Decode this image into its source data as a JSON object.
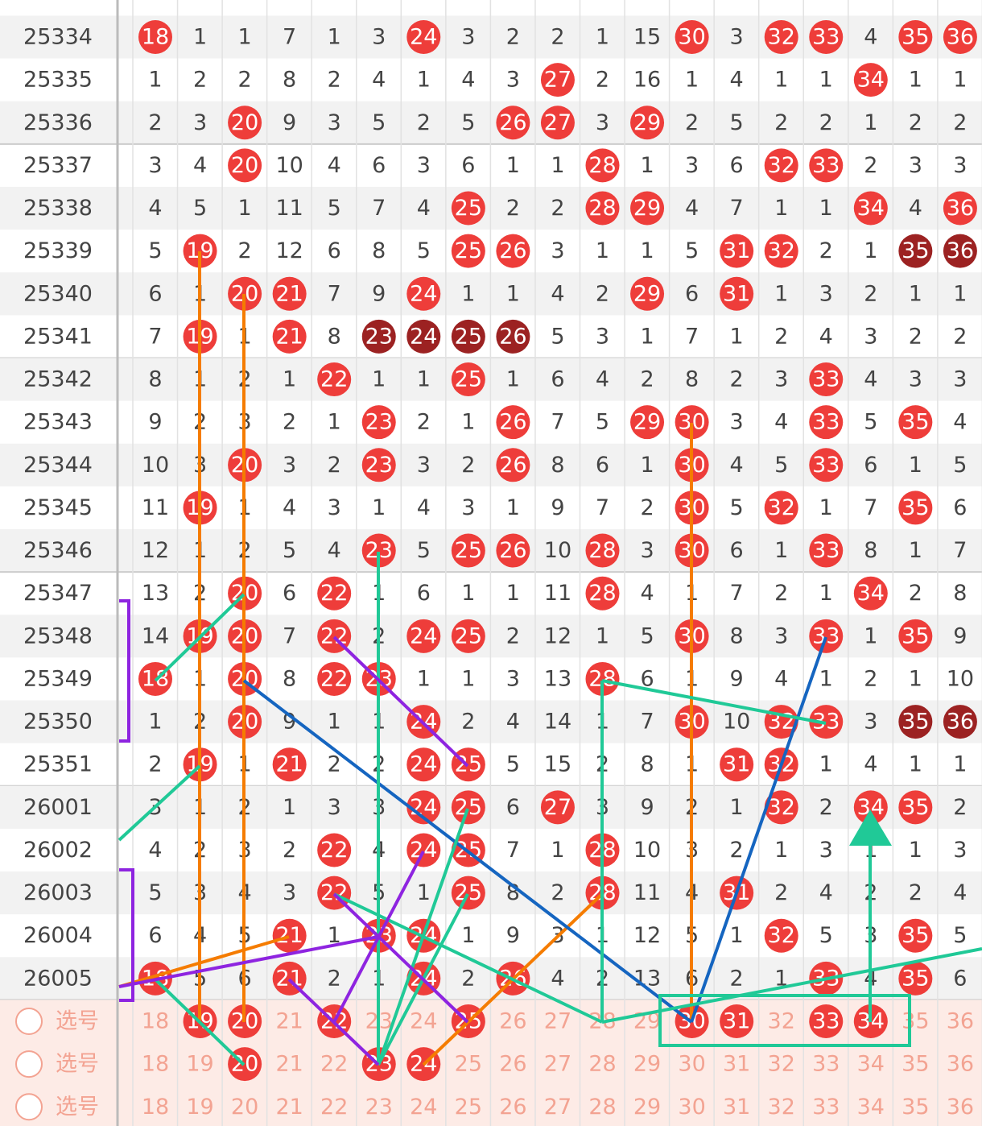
{
  "rows": [
    {
      "issue": "25334",
      "cells": [
        18,
        1,
        1,
        7,
        1,
        3,
        24,
        3,
        2,
        2,
        1,
        15,
        30,
        3,
        32,
        33,
        4,
        35,
        36
      ],
      "marks": "r.....r.....r.rr.rr"
    },
    {
      "issue": "25335",
      "cells": [
        1,
        2,
        2,
        8,
        2,
        4,
        1,
        4,
        3,
        27,
        2,
        16,
        1,
        4,
        1,
        1,
        34,
        1,
        1
      ],
      "marks": ".........r......r.."
    },
    {
      "issue": "25336",
      "cells": [
        2,
        3,
        20,
        9,
        3,
        5,
        2,
        5,
        26,
        27,
        3,
        29,
        2,
        5,
        2,
        2,
        1,
        2,
        2
      ],
      "marks": "..r.....rr.r......."
    },
    {
      "issue": "25337",
      "cells": [
        3,
        4,
        20,
        10,
        4,
        6,
        3,
        6,
        1,
        1,
        28,
        1,
        3,
        6,
        32,
        33,
        2,
        3,
        3
      ],
      "marks": "..r.......r...rr..."
    },
    {
      "issue": "25338",
      "cells": [
        4,
        5,
        1,
        11,
        5,
        7,
        4,
        25,
        2,
        2,
        28,
        29,
        4,
        7,
        1,
        1,
        34,
        4,
        36
      ],
      "marks": ".......r..rr....r.r"
    },
    {
      "issue": "25339",
      "cells": [
        5,
        19,
        2,
        12,
        6,
        8,
        5,
        25,
        26,
        3,
        1,
        1,
        5,
        31,
        32,
        2,
        1,
        35,
        36
      ],
      "marks": ".r.....rr....rr..dd"
    },
    {
      "issue": "25340",
      "cells": [
        6,
        1,
        20,
        21,
        7,
        9,
        24,
        1,
        1,
        4,
        2,
        29,
        6,
        31,
        1,
        3,
        2,
        1,
        1
      ],
      "marks": "..rr..r....r.r....."
    },
    {
      "issue": "25341",
      "cells": [
        7,
        19,
        1,
        21,
        8,
        23,
        24,
        25,
        26,
        5,
        3,
        1,
        7,
        1,
        2,
        4,
        3,
        2,
        2
      ],
      "marks": ".r.r.dddd.........."
    },
    {
      "issue": "25342",
      "cells": [
        8,
        1,
        2,
        1,
        22,
        1,
        1,
        25,
        1,
        6,
        4,
        2,
        8,
        2,
        3,
        33,
        4,
        3,
        3
      ],
      "marks": "....r..r.......r..."
    },
    {
      "issue": "25343",
      "cells": [
        9,
        2,
        3,
        2,
        1,
        23,
        2,
        1,
        26,
        7,
        5,
        29,
        30,
        3,
        4,
        33,
        5,
        35,
        4
      ],
      "marks": ".....r..r..rr..r.r."
    },
    {
      "issue": "25344",
      "cells": [
        10,
        3,
        20,
        3,
        2,
        23,
        3,
        2,
        26,
        8,
        6,
        1,
        30,
        4,
        5,
        33,
        6,
        1,
        5
      ],
      "marks": "..r..r..r...r..r..."
    },
    {
      "issue": "25345",
      "cells": [
        11,
        19,
        1,
        4,
        3,
        1,
        4,
        3,
        1,
        9,
        7,
        2,
        30,
        5,
        32,
        1,
        7,
        35,
        6
      ],
      "marks": ".r..........r.r..r."
    },
    {
      "issue": "25346",
      "cells": [
        12,
        1,
        2,
        5,
        4,
        23,
        5,
        25,
        26,
        10,
        28,
        3,
        30,
        6,
        1,
        33,
        8,
        1,
        7
      ],
      "marks": ".....r.rr.r.r..r..."
    },
    {
      "issue": "25347",
      "cells": [
        13,
        2,
        20,
        6,
        22,
        1,
        6,
        1,
        1,
        11,
        28,
        4,
        1,
        7,
        2,
        1,
        34,
        2,
        8
      ],
      "marks": "..r.r.....r.....r.."
    },
    {
      "issue": "25348",
      "cells": [
        14,
        19,
        20,
        7,
        22,
        2,
        24,
        25,
        2,
        12,
        1,
        5,
        30,
        8,
        3,
        33,
        1,
        35,
        9
      ],
      "marks": ".rr.r.rr....r..r.r."
    },
    {
      "issue": "25349",
      "cells": [
        18,
        1,
        20,
        8,
        22,
        23,
        1,
        1,
        3,
        13,
        28,
        6,
        1,
        9,
        4,
        1,
        2,
        1,
        10
      ],
      "marks": "r.r.rr....r........"
    },
    {
      "issue": "25350",
      "cells": [
        1,
        2,
        20,
        9,
        1,
        1,
        24,
        2,
        4,
        14,
        1,
        7,
        30,
        10,
        32,
        33,
        3,
        35,
        36
      ],
      "marks": "..r...r.....r.rr.dd"
    },
    {
      "issue": "25351",
      "cells": [
        2,
        19,
        1,
        21,
        2,
        2,
        24,
        25,
        5,
        15,
        2,
        8,
        1,
        31,
        32,
        1,
        4,
        1,
        1
      ],
      "marks": ".r.r..rr.....rr...."
    },
    {
      "issue": "26001",
      "cells": [
        3,
        1,
        2,
        1,
        3,
        3,
        24,
        25,
        6,
        27,
        3,
        9,
        2,
        1,
        32,
        2,
        34,
        35,
        2
      ],
      "marks": "......rr.r....r.rr."
    },
    {
      "issue": "26002",
      "cells": [
        4,
        2,
        3,
        2,
        22,
        4,
        24,
        25,
        7,
        1,
        28,
        10,
        3,
        2,
        1,
        3,
        1,
        1,
        3
      ],
      "marks": "....r.rr..r........"
    },
    {
      "issue": "26003",
      "cells": [
        5,
        3,
        4,
        3,
        22,
        5,
        1,
        25,
        8,
        2,
        28,
        11,
        4,
        31,
        2,
        4,
        2,
        2,
        4
      ],
      "marks": "....r..r..r..r....."
    },
    {
      "issue": "26004",
      "cells": [
        6,
        4,
        5,
        21,
        1,
        23,
        24,
        1,
        9,
        3,
        1,
        12,
        5,
        1,
        32,
        5,
        3,
        35,
        5
      ],
      "marks": "...r.rr.......r..r."
    },
    {
      "issue": "26005",
      "cells": [
        18,
        5,
        6,
        21,
        2,
        1,
        24,
        2,
        26,
        4,
        2,
        13,
        6,
        2,
        1,
        33,
        4,
        35,
        6
      ],
      "marks": "r..r..r.r......r.r."
    }
  ],
  "pick_rows": [
    {
      "label": "选号",
      "cells": [
        18,
        19,
        20,
        21,
        22,
        23,
        24,
        25,
        26,
        27,
        28,
        29,
        30,
        31,
        32,
        33,
        34,
        35,
        36
      ],
      "marks": ".rr.r..r....rr.rr.."
    },
    {
      "label": "选号",
      "cells": [
        18,
        19,
        20,
        21,
        22,
        23,
        24,
        25,
        26,
        27,
        28,
        29,
        30,
        31,
        32,
        33,
        34,
        35,
        36
      ],
      "marks": "..r..rr............"
    },
    {
      "label": "选号",
      "cells": [
        18,
        19,
        20,
        21,
        22,
        23,
        24,
        25,
        26,
        27,
        28,
        29,
        30,
        31,
        32,
        33,
        34,
        35,
        36
      ],
      "marks": "..................."
    }
  ]
}
